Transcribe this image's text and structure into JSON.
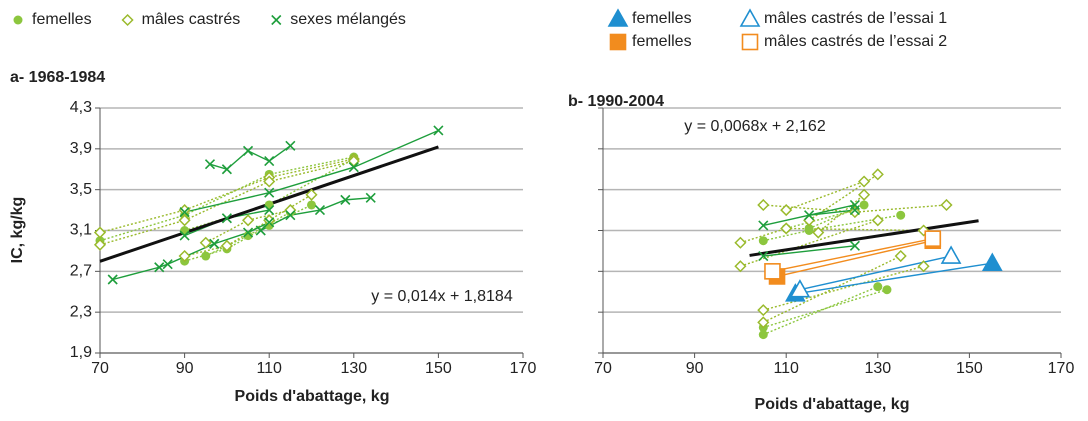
{
  "chart_data": [
    {
      "type": "scatter",
      "title": "a- 1968-1984",
      "xlabel": "Poids d'abattage, kg",
      "ylabel": "IC, kg/kg",
      "xlim": [
        70,
        170
      ],
      "xticks": [
        70,
        90,
        110,
        130,
        150,
        170
      ],
      "ylim": [
        1.9,
        4.3
      ],
      "yticks": [
        {
          "value": 1.9,
          "label": "1,9"
        },
        {
          "value": 2.3,
          "label": "2,3"
        },
        {
          "value": 2.7,
          "label": "2,7"
        },
        {
          "value": 3.1,
          "label": "3,1"
        },
        {
          "value": 3.5,
          "label": "3,5"
        },
        {
          "value": 3.9,
          "label": "3,9"
        },
        {
          "value": 4.3,
          "label": "4,3"
        }
      ],
      "grid": true,
      "series": [
        {
          "name": "femelles",
          "color": "#8cc63e",
          "marker": "dot",
          "dash": true,
          "lines": [
            {
              "x": [
                70,
                90,
                110,
                130
              ],
              "y": [
                3.0,
                3.25,
                3.65,
                3.82
              ]
            },
            {
              "x": [
                90,
                100,
                110,
                120
              ],
              "y": [
                2.8,
                2.92,
                3.15,
                3.35
              ]
            },
            {
              "x": [
                90,
                110,
                130
              ],
              "y": [
                3.1,
                3.35,
                3.8
              ]
            },
            {
              "x": [
                95,
                105,
                115
              ],
              "y": [
                2.85,
                3.05,
                3.28
              ]
            }
          ]
        },
        {
          "name": "mâles castrés",
          "color": "#9aba2c",
          "marker": "diamond",
          "dash": true,
          "lines": [
            {
              "x": [
                70,
                90,
                110,
                130
              ],
              "y": [
                3.08,
                3.3,
                3.62,
                3.8
              ]
            },
            {
              "x": [
                70,
                90,
                110,
                130
              ],
              "y": [
                2.96,
                3.2,
                3.58,
                3.78
              ]
            },
            {
              "x": [
                90,
                100,
                110,
                120
              ],
              "y": [
                2.85,
                2.95,
                3.2,
                3.45
              ]
            },
            {
              "x": [
                95,
                105,
                115
              ],
              "y": [
                2.98,
                3.2,
                3.3
              ]
            }
          ]
        },
        {
          "name": "sexes mélangés",
          "color": "#1e9e3c",
          "marker": "cross",
          "dash": false,
          "lines": [
            {
              "x": [
                73,
                84,
                86,
                97
              ],
              "y": [
                2.62,
                2.74,
                2.77,
                2.97
              ]
            },
            {
              "x": [
                108,
                115,
                122,
                128,
                134
              ],
              "y": [
                3.1,
                3.25,
                3.3,
                3.4,
                3.42
              ]
            },
            {
              "x": [
                96,
                100,
                105,
                110,
                115
              ],
              "y": [
                3.75,
                3.7,
                3.88,
                3.78,
                3.93
              ]
            },
            {
              "x": [
                90,
                110,
                130,
                150
              ],
              "y": [
                3.28,
                3.47,
                3.72,
                4.08
              ]
            },
            {
              "x": [
                90,
                100,
                110
              ],
              "y": [
                3.05,
                3.22,
                3.3
              ]
            },
            {
              "x": [
                97,
                105,
                110
              ],
              "y": [
                2.97,
                3.08,
                3.18
              ]
            }
          ]
        }
      ],
      "fit": {
        "x": [
          70,
          150
        ],
        "y": [
          2.7984,
          3.9184
        ],
        "label": "y = 0,014x + 1,8184"
      }
    },
    {
      "type": "scatter",
      "title": "b- 1990-2004",
      "xlabel": "Poids d'abattage, kg",
      "xlim": [
        70,
        170
      ],
      "xticks": [
        70,
        90,
        110,
        130,
        150,
        170
      ],
      "ylim": [
        1.9,
        4.3
      ],
      "yticks": [
        1.9,
        2.3,
        2.7,
        3.1,
        3.5,
        3.9,
        4.3
      ],
      "ytick_labels": false,
      "grid": true,
      "series": [
        {
          "color": "#8cc63e",
          "marker": "dot",
          "dash": true,
          "lines": [
            {
              "x": [
                105,
                130
              ],
              "y": [
                2.08,
                2.55
              ]
            },
            {
              "x": [
                105,
                132
              ],
              "y": [
                2.15,
                2.52
              ]
            },
            {
              "x": [
                110,
                125
              ],
              "y": [
                3.12,
                3.3
              ]
            },
            {
              "x": [
                105,
                115,
                135
              ],
              "y": [
                3.0,
                3.1,
                3.25
              ]
            },
            {
              "x": [
                115,
                127
              ],
              "y": [
                3.12,
                3.35
              ]
            }
          ]
        },
        {
          "color": "#9aba2c",
          "marker": "diamond",
          "dash": true,
          "lines": [
            {
              "x": [
                105,
                140
              ],
              "y": [
                2.32,
                2.75
              ]
            },
            {
              "x": [
                105,
                135
              ],
              "y": [
                2.2,
                2.85
              ]
            },
            {
              "x": [
                100,
                130
              ],
              "y": [
                2.75,
                3.2
              ]
            },
            {
              "x": [
                100,
                110,
                140
              ],
              "y": [
                2.98,
                3.12,
                3.1
              ]
            },
            {
              "x": [
                105,
                125,
                145
              ],
              "y": [
                3.35,
                3.28,
                3.35
              ]
            },
            {
              "x": [
                110,
                127
              ],
              "y": [
                3.3,
                3.58
              ]
            },
            {
              "x": [
                115,
                130
              ],
              "y": [
                3.2,
                3.65
              ]
            },
            {
              "x": [
                117,
                127
              ],
              "y": [
                3.08,
                3.45
              ]
            }
          ]
        },
        {
          "color": "#1e9e3c",
          "marker": "cross",
          "dash": false,
          "lines": [
            {
              "x": [
                105,
                125
              ],
              "y": [
                3.15,
                3.35
              ]
            },
            {
              "x": [
                105,
                125
              ],
              "y": [
                2.85,
                2.95
              ]
            },
            {
              "x": [
                115,
                125
              ],
              "y": [
                3.25,
                3.3
              ]
            }
          ]
        },
        {
          "name": "femelles",
          "color": "#1f8fd0",
          "marker": "triangle",
          "dash": false,
          "lines": [
            {
              "x": [
                112,
                155
              ],
              "y": [
                2.48,
                2.78
              ]
            }
          ]
        },
        {
          "name": "mâles castrés de l’essai 1",
          "color": "#1f8fd0",
          "marker": "triangle-open",
          "dash": false,
          "lines": [
            {
              "x": [
                113,
                146
              ],
              "y": [
                2.52,
                2.85
              ]
            }
          ]
        },
        {
          "name": "femelles",
          "color": "#f28c1e",
          "marker": "square",
          "dash": false,
          "lines": [
            {
              "x": [
                108,
                142
              ],
              "y": [
                2.65,
                3.0
              ]
            }
          ]
        },
        {
          "name": "mâles castrés de l’essai 2",
          "color": "#f28c1e",
          "marker": "square-open",
          "dash": false,
          "lines": [
            {
              "x": [
                107,
                142
              ],
              "y": [
                2.7,
                3.02
              ]
            }
          ]
        }
      ],
      "fit": {
        "x": [
          102,
          152
        ],
        "y": [
          2.8556,
          3.1956
        ],
        "label": "y = 0,0068x + 2,162"
      }
    }
  ]
}
